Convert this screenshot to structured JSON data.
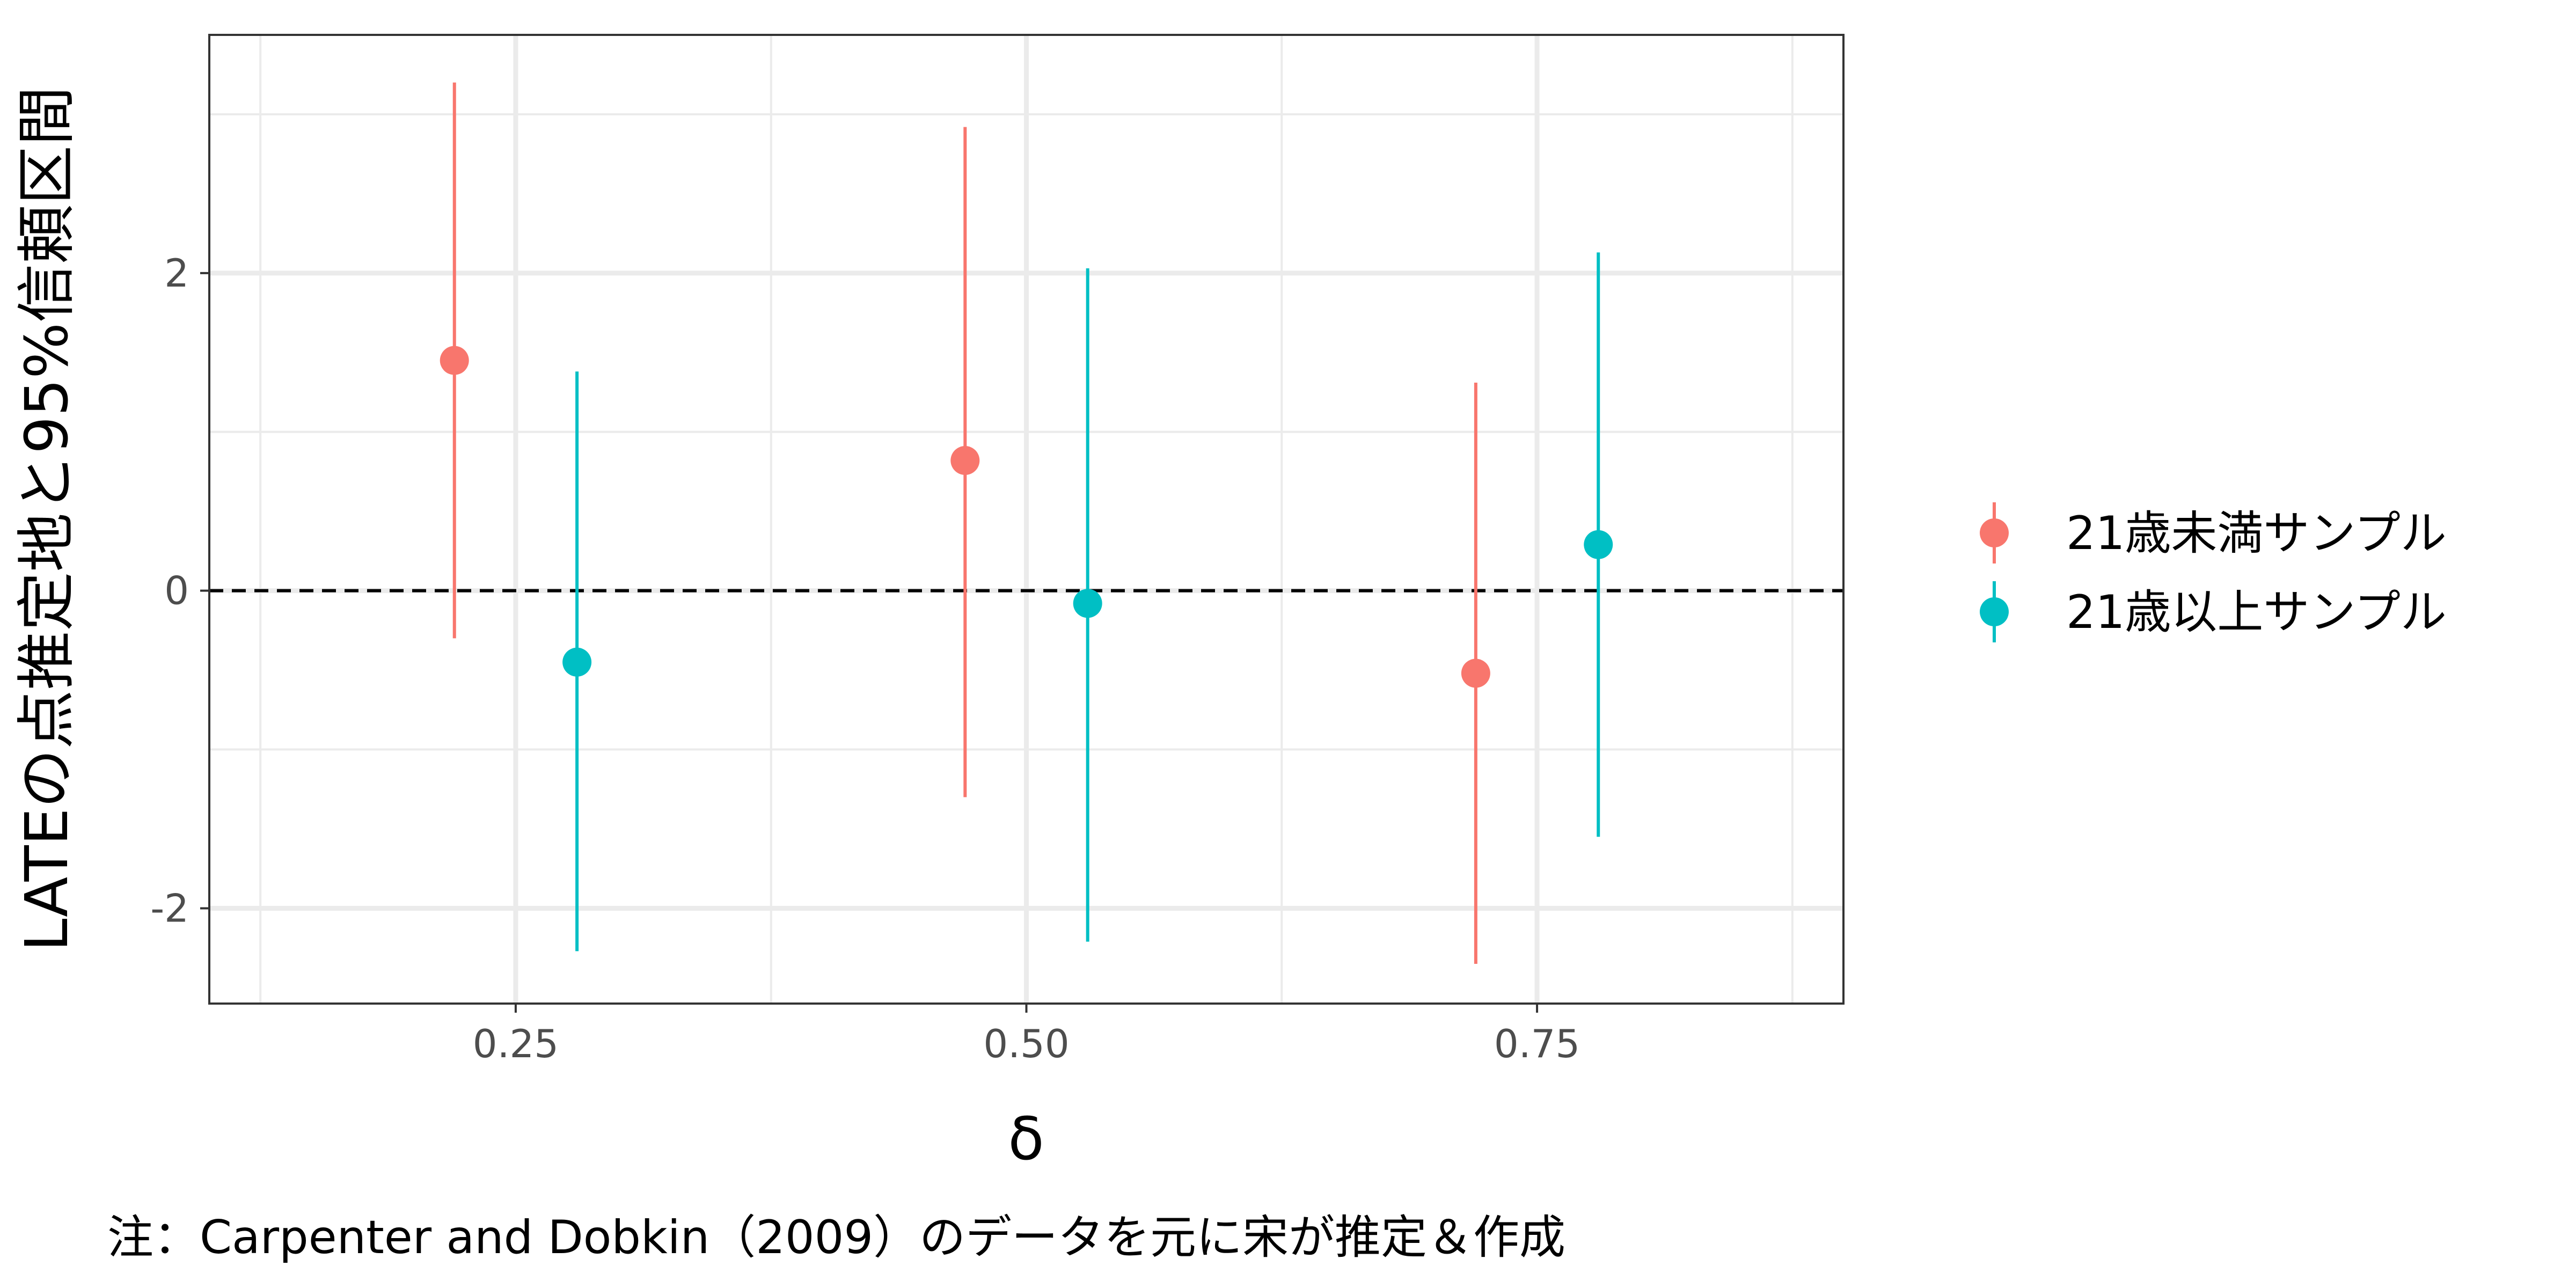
{
  "chart_data": {
    "type": "scatter",
    "subtype": "point-range",
    "xlabel": "δ",
    "ylabel": "LATEの点推定地と95%信頼区間",
    "caption": "注：Carpenter and Dobkin（2009）のデータを元に宋が推定＆作成",
    "xlim": [
      0.1,
      0.9
    ],
    "ylim": [
      -2.6,
      3.5
    ],
    "x_ticks": [
      0.25,
      0.5,
      0.75
    ],
    "x_tick_labels": [
      "0.25",
      "0.50",
      "0.75"
    ],
    "y_ticks": [
      -2,
      0,
      2
    ],
    "y_tick_labels": [
      "-2",
      "0",
      "2"
    ],
    "reference_line": {
      "y": 0,
      "style": "dashed"
    },
    "grid": true,
    "legend_position": "right",
    "series": [
      {
        "name": "21歳未満サンプル",
        "color": "#F8766D",
        "points": [
          {
            "x": 0.22,
            "y": 1.45,
            "lower": -0.3,
            "upper": 3.2
          },
          {
            "x": 0.47,
            "y": 0.82,
            "lower": -1.3,
            "upper": 2.92
          },
          {
            "x": 0.72,
            "y": -0.52,
            "lower": -2.35,
            "upper": 1.31
          }
        ]
      },
      {
        "name": "21歳以上サンプル",
        "color": "#00BFC4",
        "points": [
          {
            "x": 0.28,
            "y": -0.45,
            "lower": -2.27,
            "upper": 1.38
          },
          {
            "x": 0.53,
            "y": -0.08,
            "lower": -2.21,
            "upper": 2.03
          },
          {
            "x": 0.78,
            "y": 0.29,
            "lower": -1.55,
            "upper": 2.13
          }
        ]
      }
    ]
  }
}
